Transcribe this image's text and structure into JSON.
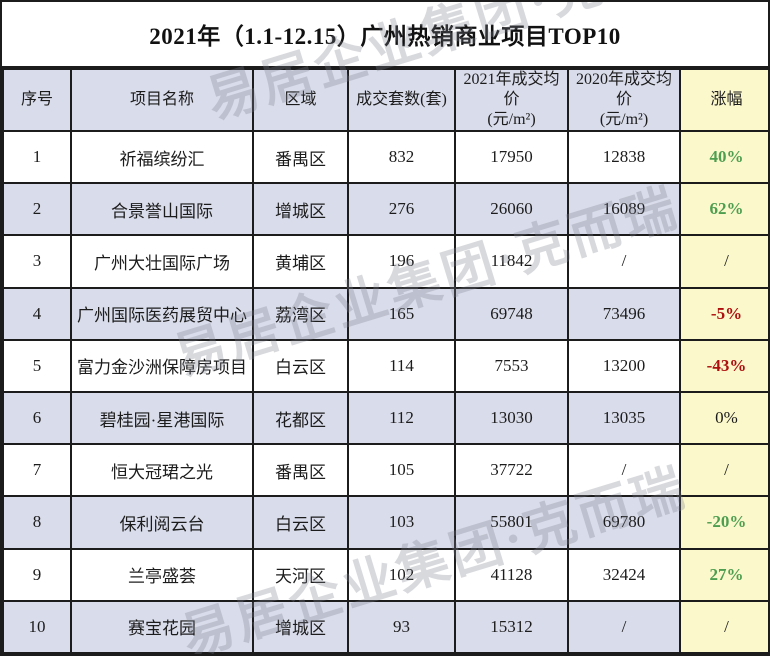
{
  "title": "2021年（1.1-12.15）广州热销商业项目TOP10",
  "watermark": {
    "text": "易居企业集团·克而瑞"
  },
  "palette": {
    "positive_green": "#4e9e50",
    "negative_red": "#ad0e0e",
    "neutral_text": "#1c1c1c",
    "row_alt_bg": "#d9dcea",
    "header_bg": "#d9dcea",
    "change_col_bg": "#fbf8cc",
    "border": "#1c1c1c"
  },
  "table": {
    "headers": [
      "序号",
      "项目名称",
      "区域",
      "成交套数(套)",
      "2021年成交均价\n(元/m²)",
      "2020年成交均价\n(元/m²)",
      "涨幅"
    ],
    "rows": [
      {
        "no": "1",
        "name": "祈福缤纷汇",
        "district": "番禺区",
        "units": "832",
        "price_2021": "17950",
        "price_2020": "12838",
        "change": "40%",
        "change_style": "green"
      },
      {
        "no": "2",
        "name": "合景誉山国际",
        "district": "增城区",
        "units": "276",
        "price_2021": "26060",
        "price_2020": "16089",
        "change": "62%",
        "change_style": "green"
      },
      {
        "no": "3",
        "name": "广州大壮国际广场",
        "district": "黄埔区",
        "units": "196",
        "price_2021": "11842",
        "price_2020": "/",
        "change": "/",
        "change_style": "black"
      },
      {
        "no": "4",
        "name": "广州国际医药展贸中心",
        "district": "荔湾区",
        "units": "165",
        "price_2021": "69748",
        "price_2020": "73496",
        "change": "-5%",
        "change_style": "red"
      },
      {
        "no": "5",
        "name": "富力金沙洲保障房项目",
        "district": "白云区",
        "units": "114",
        "price_2021": "7553",
        "price_2020": "13200",
        "change": "-43%",
        "change_style": "red"
      },
      {
        "no": "6",
        "name": "碧桂园·星港国际",
        "district": "花都区",
        "units": "112",
        "price_2021": "13030",
        "price_2020": "13035",
        "change": "0%",
        "change_style": "black"
      },
      {
        "no": "7",
        "name": "恒大冠珺之光",
        "district": "番禺区",
        "units": "105",
        "price_2021": "37722",
        "price_2020": "/",
        "change": "/",
        "change_style": "black"
      },
      {
        "no": "8",
        "name": "保利阅云台",
        "district": "白云区",
        "units": "103",
        "price_2021": "55801",
        "price_2020": "69780",
        "change": "-20%",
        "change_style": "green"
      },
      {
        "no": "9",
        "name": "兰亭盛荟",
        "district": "天河区",
        "units": "102",
        "price_2021": "41128",
        "price_2020": "32424",
        "change": "27%",
        "change_style": "green"
      },
      {
        "no": "10",
        "name": "赛宝花园",
        "district": "增城区",
        "units": "93",
        "price_2021": "15312",
        "price_2020": "/",
        "change": "/",
        "change_style": "black"
      }
    ]
  },
  "chart_data": {
    "type": "table",
    "title": "2021年（1.1-12.15）广州热销商业项目TOP10",
    "columns": [
      "序号",
      "项目名称",
      "区域",
      "成交套数(套)",
      "2021年成交均价(元/m²)",
      "2020年成交均价(元/m²)",
      "涨幅"
    ],
    "rows": [
      [
        1,
        "祈福缤纷汇",
        "番禺区",
        832,
        17950,
        12838,
        "40%"
      ],
      [
        2,
        "合景誉山国际",
        "增城区",
        276,
        26060,
        16089,
        "62%"
      ],
      [
        3,
        "广州大壮国际广场",
        "黄埔区",
        196,
        11842,
        "/",
        "/"
      ],
      [
        4,
        "广州国际医药展贸中心",
        "荔湾区",
        165,
        69748,
        73496,
        "-5%"
      ],
      [
        5,
        "富力金沙洲保障房项目",
        "白云区",
        114,
        7553,
        13200,
        "-43%"
      ],
      [
        6,
        "碧桂园·星港国际",
        "花都区",
        112,
        13030,
        13035,
        "0%"
      ],
      [
        7,
        "恒大冠珺之光",
        "番禺区",
        105,
        37722,
        "/",
        "/"
      ],
      [
        8,
        "保利阅云台",
        "白云区",
        103,
        55801,
        69780,
        "-20%"
      ],
      [
        9,
        "兰亭盛荟",
        "天河区",
        102,
        41128,
        32424,
        "27%"
      ],
      [
        10,
        "赛宝花园",
        "增城区",
        93,
        15312,
        "/",
        "/"
      ]
    ]
  }
}
